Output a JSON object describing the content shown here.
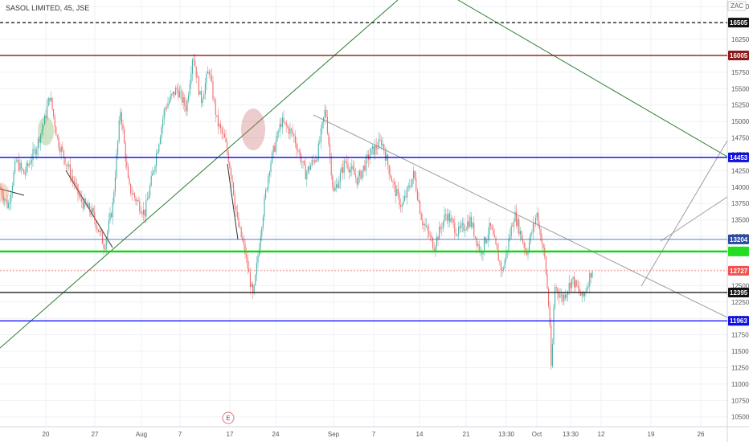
{
  "header": {
    "symbol_title": "SASOL LIMITED, 45, JSE"
  },
  "axis": {
    "currency": "ZAC"
  },
  "chart_data": {
    "type": "candlestick",
    "title": "SASOL LIMITED, 45, JSE",
    "currency": "ZAC",
    "y_ticks": [
      10500,
      10750,
      11000,
      11250,
      11500,
      11750,
      12000,
      12250,
      12500,
      12750,
      13000,
      13250,
      13500,
      13750,
      14000,
      14250,
      14500,
      14750,
      15000,
      15250,
      15500,
      15750,
      16000,
      16250,
      16500,
      16750
    ],
    "ylim": [
      10350,
      16850
    ],
    "x_labels": [
      "20",
      "27",
      "Aug",
      "7",
      "17",
      "24",
      "Sep",
      "7",
      "14",
      "21",
      "13:30",
      "Oct",
      "13:30",
      "12",
      "19",
      "26"
    ],
    "levels": [
      {
        "value": 16505,
        "label": "16505",
        "color": "#222222",
        "style": "dashed",
        "badge_bg": "#111111",
        "badge_fg": "#ffffff"
      },
      {
        "value": 16005,
        "label": "16005",
        "color": "#8b0000",
        "style": "solid",
        "badge_bg": "#8b1a1a",
        "badge_fg": "#ffffff"
      },
      {
        "value": 14453,
        "label": "14453",
        "color": "#0000ff",
        "style": "solid",
        "badge_bg": "#1010e0",
        "badge_fg": "#ffffff"
      },
      {
        "value": 13204,
        "label": "13204",
        "color": "#3050a0",
        "style": "thin",
        "badge_bg": "#2a4aa0",
        "badge_fg": "#ffffff"
      },
      {
        "value": 13020,
        "label": "",
        "color": "#00e000",
        "style": "solid",
        "badge_bg": "#22dd22",
        "badge_fg": "#ffffff"
      },
      {
        "value": 12727,
        "label": "12727",
        "color": "#f08080",
        "style": "dotted",
        "badge_bg": "#ef5350",
        "badge_fg": "#ffffff"
      },
      {
        "value": 12395,
        "label": "12395",
        "color": "#222222",
        "style": "solid",
        "badge_bg": "#111111",
        "badge_fg": "#ffffff"
      },
      {
        "value": 11963,
        "label": "11963",
        "color": "#0000ff",
        "style": "solid",
        "badge_bg": "#1010e0",
        "badge_fg": "#ffffff"
      }
    ],
    "earnings_marker": "E",
    "series_key_points": [
      {
        "x": 0,
        "y": 14000
      },
      {
        "x": 10,
        "y": 13700
      },
      {
        "x": 20,
        "y": 14400
      },
      {
        "x": 30,
        "y": 14200
      },
      {
        "x": 45,
        "y": 14600
      },
      {
        "x": 55,
        "y": 15000
      },
      {
        "x": 62,
        "y": 15400
      },
      {
        "x": 72,
        "y": 14700
      },
      {
        "x": 85,
        "y": 14300
      },
      {
        "x": 100,
        "y": 13800
      },
      {
        "x": 115,
        "y": 13600
      },
      {
        "x": 130,
        "y": 13100
      },
      {
        "x": 140,
        "y": 13700
      },
      {
        "x": 150,
        "y": 15200
      },
      {
        "x": 160,
        "y": 14000
      },
      {
        "x": 170,
        "y": 13800
      },
      {
        "x": 180,
        "y": 13600
      },
      {
        "x": 190,
        "y": 14200
      },
      {
        "x": 205,
        "y": 15200
      },
      {
        "x": 220,
        "y": 15500
      },
      {
        "x": 232,
        "y": 15200
      },
      {
        "x": 240,
        "y": 16050
      },
      {
        "x": 250,
        "y": 15300
      },
      {
        "x": 260,
        "y": 15800
      },
      {
        "x": 270,
        "y": 15000
      },
      {
        "x": 280,
        "y": 14700
      },
      {
        "x": 288,
        "y": 14200
      },
      {
        "x": 295,
        "y": 13500
      },
      {
        "x": 305,
        "y": 13000
      },
      {
        "x": 315,
        "y": 12300
      },
      {
        "x": 325,
        "y": 13400
      },
      {
        "x": 335,
        "y": 14300
      },
      {
        "x": 350,
        "y": 15000
      },
      {
        "x": 365,
        "y": 14800
      },
      {
        "x": 380,
        "y": 14200
      },
      {
        "x": 395,
        "y": 14500
      },
      {
        "x": 405,
        "y": 15200
      },
      {
        "x": 415,
        "y": 13900
      },
      {
        "x": 430,
        "y": 14400
      },
      {
        "x": 445,
        "y": 14100
      },
      {
        "x": 460,
        "y": 14500
      },
      {
        "x": 475,
        "y": 14700
      },
      {
        "x": 490,
        "y": 14000
      },
      {
        "x": 500,
        "y": 13700
      },
      {
        "x": 515,
        "y": 14200
      },
      {
        "x": 525,
        "y": 13500
      },
      {
        "x": 540,
        "y": 13100
      },
      {
        "x": 555,
        "y": 13600
      },
      {
        "x": 570,
        "y": 13300
      },
      {
        "x": 585,
        "y": 13500
      },
      {
        "x": 598,
        "y": 13000
      },
      {
        "x": 610,
        "y": 13400
      },
      {
        "x": 625,
        "y": 12700
      },
      {
        "x": 640,
        "y": 13600
      },
      {
        "x": 655,
        "y": 13000
      },
      {
        "x": 668,
        "y": 13600
      },
      {
        "x": 678,
        "y": 12900
      },
      {
        "x": 684,
        "y": 12000
      },
      {
        "x": 686,
        "y": 11100
      },
      {
        "x": 690,
        "y": 12500
      },
      {
        "x": 700,
        "y": 12300
      },
      {
        "x": 712,
        "y": 12600
      },
      {
        "x": 725,
        "y": 12300
      },
      {
        "x": 738,
        "y": 12800
      }
    ]
  }
}
